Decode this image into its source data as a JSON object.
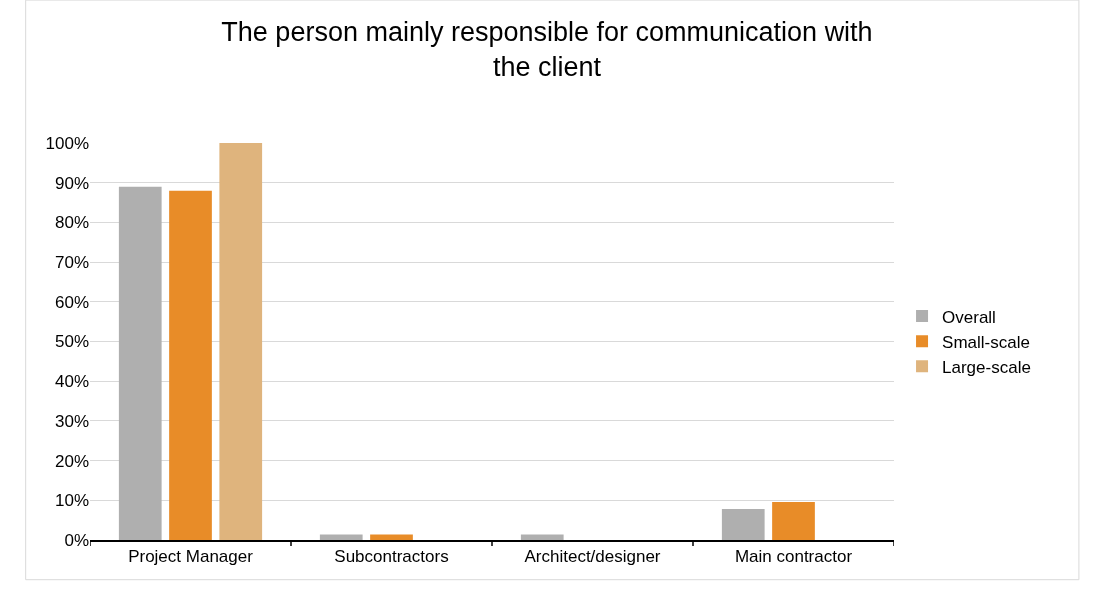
{
  "chart_data": {
    "type": "bar",
    "title": "The person mainly responsible for communication with\nthe client",
    "categories": [
      "Project Manager",
      "Subcontractors",
      "Architect/designer",
      "Main contractor"
    ],
    "series": [
      {
        "name": "Overall",
        "color": "#afafaf",
        "values": [
          89,
          1.4,
          1.4,
          7.8
        ]
      },
      {
        "name": "Small-scale",
        "color": "#e88c28",
        "values": [
          88,
          1.4,
          null,
          9.6
        ]
      },
      {
        "name": "Large-scale",
        "color": "#dfb47d",
        "values": [
          100,
          null,
          null,
          null
        ]
      }
    ],
    "ylim": [
      0,
      100
    ],
    "yticks": [
      {
        "value": 0,
        "label": "0%"
      },
      {
        "value": 10,
        "label": "10%"
      },
      {
        "value": 20,
        "label": "20%"
      },
      {
        "value": 30,
        "label": "30%"
      },
      {
        "value": 40,
        "label": "40%"
      },
      {
        "value": 50,
        "label": "50%"
      },
      {
        "value": 60,
        "label": "60%"
      },
      {
        "value": 70,
        "label": "70%"
      },
      {
        "value": 80,
        "label": "80%"
      },
      {
        "value": 90,
        "label": "90%"
      },
      {
        "value": 100,
        "label": "100%"
      }
    ],
    "grid": "y",
    "legend": "right"
  }
}
